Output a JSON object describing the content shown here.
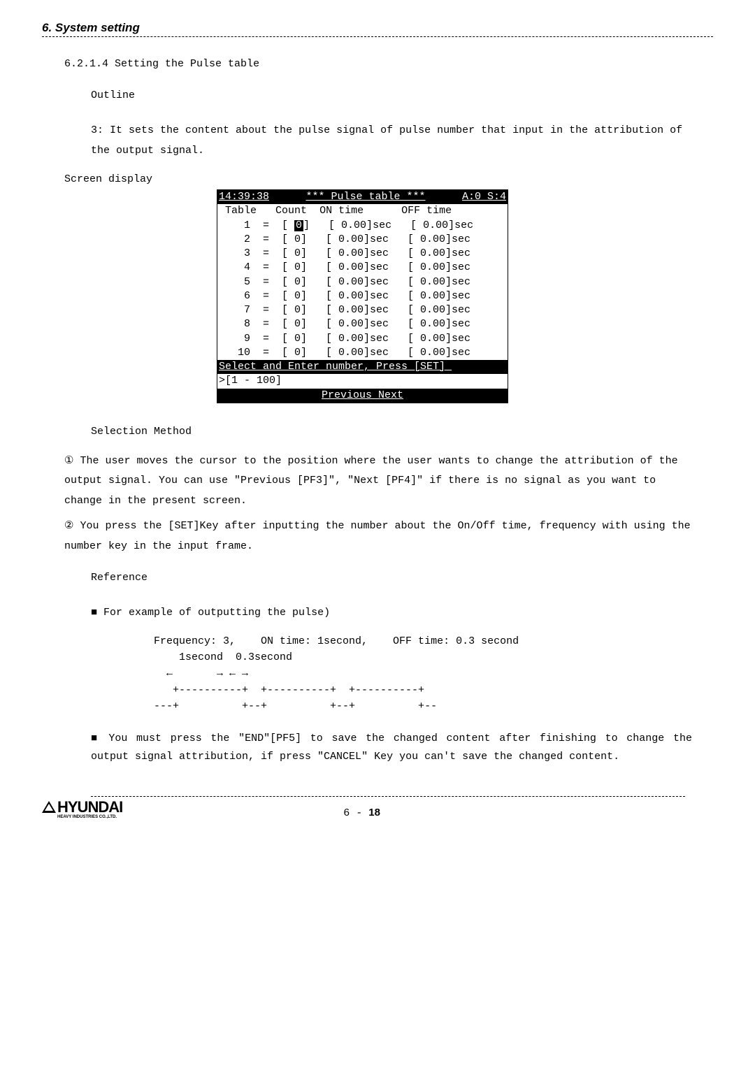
{
  "header": {
    "title": "6. System setting"
  },
  "section": {
    "number": "6.2.1.4",
    "title": "Setting the Pulse table"
  },
  "outline": {
    "label": "Outline",
    "item_number": "3:",
    "text": "It sets the content about the pulse signal of pulse number that input in the attribution of the output signal."
  },
  "screen": {
    "label": "Screen display",
    "time": "14:39:38",
    "title_mid": "*** Pulse table ***",
    "title_right": "A:0 S:4",
    "cols": {
      "c1": "Table",
      "c2": "Count",
      "c3": "ON time",
      "c4": "OFF time"
    },
    "rows": [
      {
        "n": "1",
        "count": "0",
        "on": "[ 0.00]sec",
        "off": "[ 0.00]sec",
        "cursor": true
      },
      {
        "n": "2",
        "count": "0",
        "on": "[ 0.00]sec",
        "off": "[ 0.00]sec",
        "cursor": false
      },
      {
        "n": "3",
        "count": "0",
        "on": "[ 0.00]sec",
        "off": "[ 0.00]sec",
        "cursor": false
      },
      {
        "n": "4",
        "count": "0",
        "on": "[ 0.00]sec",
        "off": "[ 0.00]sec",
        "cursor": false
      },
      {
        "n": "5",
        "count": "0",
        "on": "[ 0.00]sec",
        "off": "[ 0.00]sec",
        "cursor": false
      },
      {
        "n": "6",
        "count": "0",
        "on": "[ 0.00]sec",
        "off": "[ 0.00]sec",
        "cursor": false
      },
      {
        "n": "7",
        "count": "0",
        "on": "[ 0.00]sec",
        "off": "[ 0.00]sec",
        "cursor": false
      },
      {
        "n": "8",
        "count": "0",
        "on": "[ 0.00]sec",
        "off": "[ 0.00]sec",
        "cursor": false
      },
      {
        "n": "9",
        "count": "0",
        "on": "[ 0.00]sec",
        "off": "[ 0.00]sec",
        "cursor": false
      },
      {
        "n": "10",
        "count": "0",
        "on": "[ 0.00]sec",
        "off": "[ 0.00]sec",
        "cursor": false
      }
    ],
    "prompt1": "Select and Enter number, Press [SET]",
    "prompt2": ">[1 - 100]",
    "nav": "Previous   Next"
  },
  "selection": {
    "label": "Selection Method",
    "items": [
      "The user moves the cursor to the position where the user wants to change the attribution of the output signal. You can use \"Previous [PF3]\", \"Next [PF4]\" if there is no signal as you want to change in the present screen.",
      "You press the [SET]Key after inputting the number about the On/Off time, frequency with using the number key in the input frame."
    ],
    "markers": [
      "①",
      "②"
    ]
  },
  "reference": {
    "label": "Reference",
    "bullet1": "For example of outputting the pulse)",
    "preblock": "Frequency: 3,    ON time: 1second,    OFF time: 0.3 second\n    1second  0.3second\n  ←       → ← →\n   +----------+  +----------+  +----------+\n---+          +--+          +--+          +--",
    "bullet2": "You must press the \"END\"[PF5] to save the changed content after finishing to change the output signal attribution, if press \"CANCEL\" Key you can't save the changed content."
  },
  "footer": {
    "logo_text": "HYUNDAI",
    "logo_sub": "HEAVY INDUSTRIES CO.,LTD.",
    "page_left": "6 -",
    "page_num": "18"
  }
}
